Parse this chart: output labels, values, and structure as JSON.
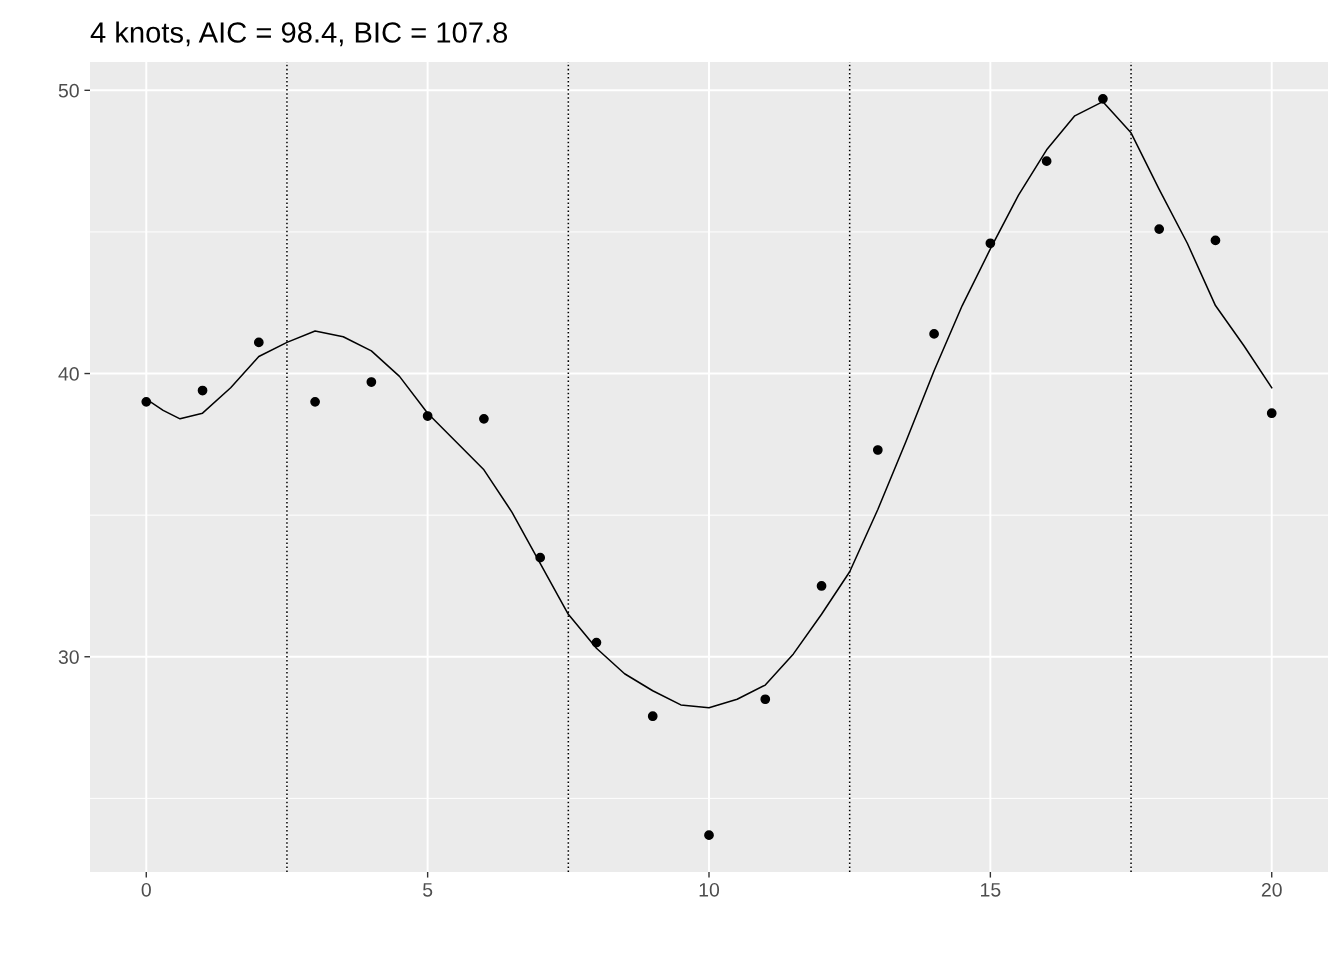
{
  "chart_data": {
    "type": "scatter",
    "title": "4 knots, AIC = 98.4, BIC = 107.8",
    "series": [
      {
        "color": "#000000",
        "marker": "circle",
        "x": [
          0,
          1,
          2,
          3,
          4,
          5,
          6,
          7,
          8,
          9,
          10,
          11,
          12,
          13,
          14,
          15,
          16,
          17,
          18,
          19,
          20
        ],
        "values": [
          39.0,
          39.4,
          41.1,
          39.0,
          39.7,
          38.5,
          38.4,
          33.5,
          30.5,
          27.9,
          23.7,
          28.5,
          32.5,
          37.3,
          41.4,
          44.6,
          47.5,
          49.7,
          45.1,
          44.7,
          38.6
        ]
      },
      {
        "type": "line",
        "color": "#000000",
        "marker": "none",
        "line_style": "solid",
        "x": [
          0,
          0.3,
          0.6,
          1,
          1.5,
          2,
          2.5,
          3,
          3.5,
          4,
          4.5,
          5,
          5.5,
          6,
          6.5,
          7,
          7.5,
          8,
          8.5,
          9,
          9.5,
          10,
          10.5,
          11,
          11.5,
          12,
          12.5,
          13,
          13.5,
          14,
          14.5,
          15,
          15.5,
          16,
          16.5,
          17,
          17.5,
          18,
          18.5,
          19,
          19.5,
          20
        ],
        "values": [
          39.1,
          38.7,
          38.4,
          38.6,
          39.5,
          40.6,
          41.1,
          41.5,
          41.3,
          40.8,
          39.9,
          38.6,
          37.6,
          36.6,
          35.1,
          33.3,
          31.5,
          30.3,
          29.4,
          28.8,
          28.3,
          28.2,
          28.5,
          29.0,
          30.1,
          31.5,
          33.0,
          35.2,
          37.6,
          40.1,
          42.4,
          44.4,
          46.3,
          47.9,
          49.1,
          49.6,
          48.5,
          46.5,
          44.6,
          42.4,
          41.0,
          39.5
        ]
      }
    ],
    "xlim": [
      -1,
      21
    ],
    "ylim": [
      22.4,
      51.0
    ],
    "xticks": [
      0,
      5,
      10,
      15,
      20
    ],
    "yticks": [
      30,
      40,
      50
    ],
    "grid": true,
    "ref_lines": [
      {
        "axis": "x",
        "value": 2.5,
        "label": null,
        "color": "#000000",
        "line_style": "dotted"
      },
      {
        "axis": "x",
        "value": 7.5,
        "label": null,
        "color": "#000000",
        "line_style": "dotted"
      },
      {
        "axis": "x",
        "value": 12.5,
        "label": null,
        "color": "#000000",
        "line_style": "dotted"
      },
      {
        "axis": "x",
        "value": 17.5,
        "label": null,
        "color": "#000000",
        "line_style": "dotted"
      }
    ]
  }
}
